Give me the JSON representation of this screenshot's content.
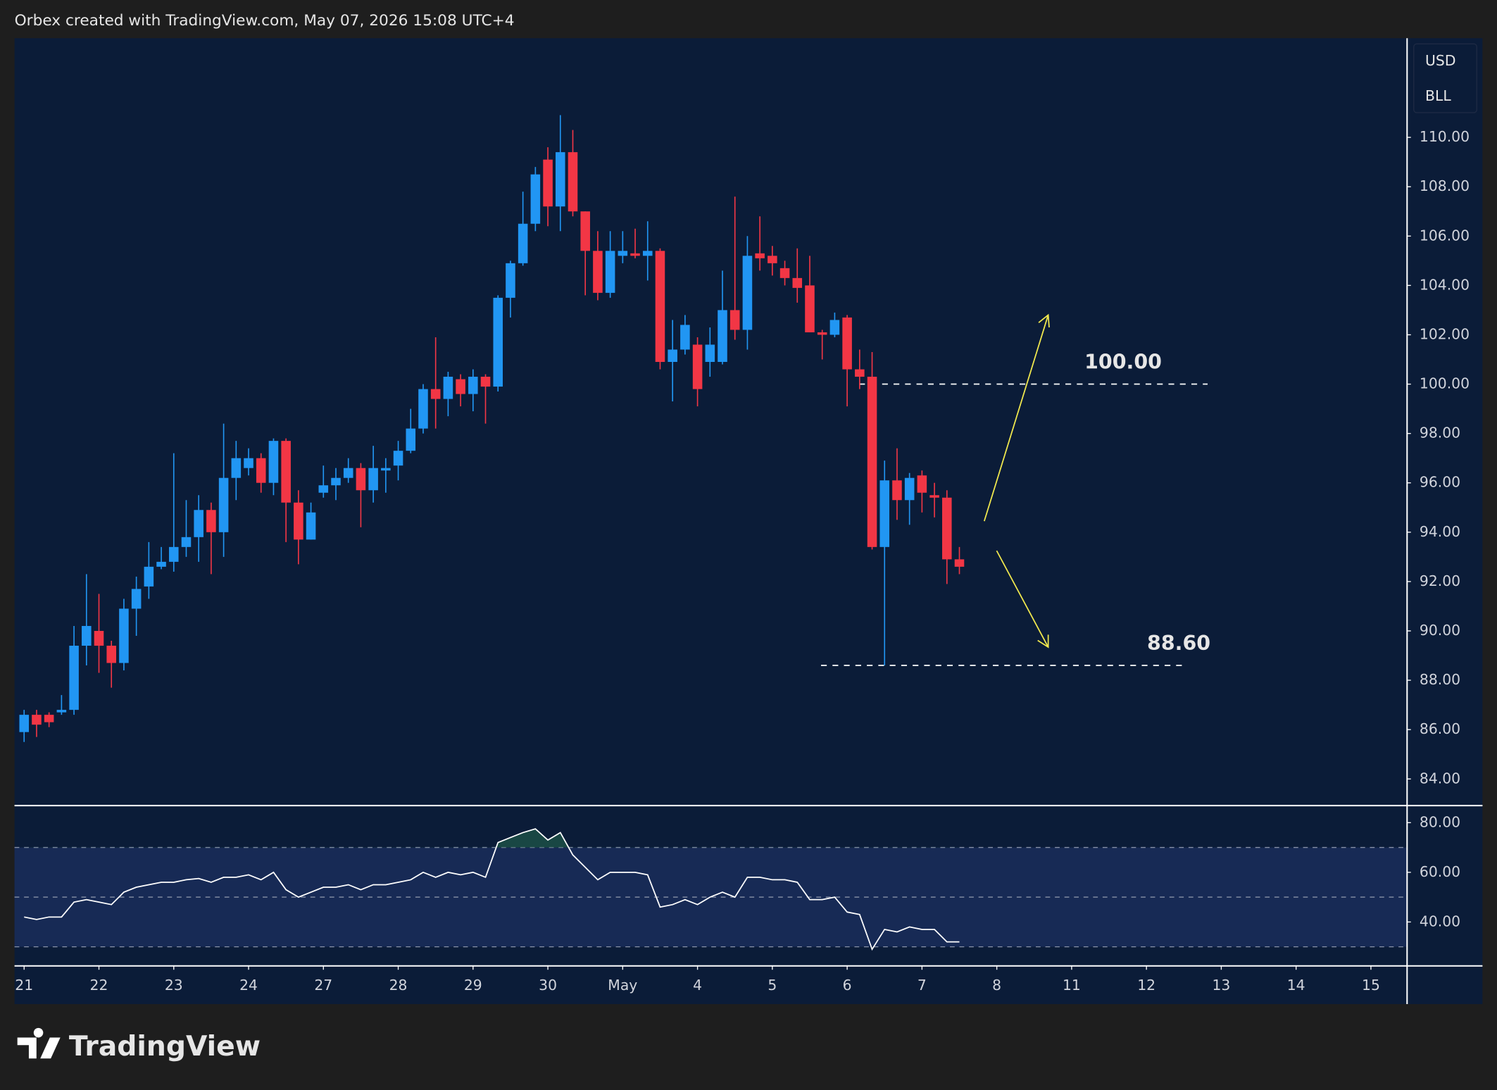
{
  "chart_data": {
    "type": "candlestick",
    "header": "Orbex created with TradingView.com, May 07, 2026 15:08 UTC+4",
    "currency": "USD",
    "unit": "BLL",
    "brand": "TradingView",
    "up_color": "#2196f3",
    "down_color": "#f23645",
    "x": [
      0,
      1,
      2,
      3,
      4,
      5,
      6,
      7,
      8,
      9,
      10,
      11,
      12,
      13,
      14,
      15,
      16,
      17,
      18,
      19,
      20,
      21,
      22,
      23,
      24,
      25,
      26,
      27,
      28,
      29,
      30,
      31,
      32,
      33,
      34,
      35,
      36,
      37,
      38,
      39,
      40,
      41,
      42,
      43,
      44,
      45,
      46,
      47,
      48,
      49,
      50,
      51,
      52,
      53,
      54,
      55,
      56,
      57,
      58,
      59,
      60,
      61,
      62,
      63,
      64,
      65,
      66,
      67,
      68,
      69,
      70,
      71,
      72,
      73,
      74,
      75
    ],
    "open": [
      85.9,
      86.6,
      86.6,
      86.7,
      86.8,
      89.4,
      90.0,
      89.4,
      88.7,
      90.9,
      91.8,
      92.6,
      92.8,
      93.4,
      93.8,
      94.9,
      94.0,
      96.2,
      96.6,
      97.0,
      96.0,
      97.7,
      95.2,
      93.7,
      95.6,
      95.9,
      96.2,
      96.6,
      95.7,
      96.5,
      96.7,
      97.3,
      98.2,
      99.8,
      99.4,
      100.2,
      99.6,
      100.3,
      99.9,
      103.5,
      104.9,
      106.5,
      109.1,
      107.2,
      109.4,
      107.0,
      105.4,
      103.7,
      105.2,
      105.3,
      105.2,
      105.4,
      100.9,
      101.4,
      101.6,
      100.9,
      100.9,
      103.0,
      102.2,
      105.3,
      105.2,
      104.7,
      104.3,
      104.0,
      102.1,
      102.0,
      102.7,
      100.6,
      100.3,
      93.4,
      96.1,
      95.3,
      96.3,
      95.5,
      95.4,
      92.9
    ],
    "high": [
      86.8,
      86.8,
      86.7,
      87.4,
      90.2,
      92.3,
      91.5,
      89.6,
      91.3,
      92.2,
      93.6,
      93.4,
      97.2,
      95.3,
      95.5,
      95.2,
      98.4,
      97.7,
      97.4,
      97.2,
      97.8,
      97.8,
      95.7,
      95.2,
      96.7,
      96.6,
      97.0,
      96.8,
      97.5,
      97.0,
      97.7,
      99.0,
      100.0,
      101.9,
      100.5,
      100.4,
      100.6,
      100.4,
      103.6,
      105.0,
      107.8,
      108.8,
      109.6,
      110.9,
      110.3,
      107.0,
      106.2,
      106.2,
      106.2,
      106.3,
      106.6,
      105.5,
      102.6,
      102.8,
      101.9,
      102.3,
      104.6,
      107.6,
      106.0,
      106.8,
      105.6,
      105.0,
      105.5,
      105.2,
      102.2,
      102.9,
      102.8,
      101.4,
      101.3,
      96.9,
      97.4,
      96.4,
      96.5,
      96.0,
      95.7,
      93.4
    ],
    "low": [
      85.5,
      85.7,
      86.1,
      86.6,
      86.6,
      88.6,
      88.3,
      87.7,
      88.4,
      89.8,
      91.3,
      92.5,
      92.4,
      93.0,
      92.8,
      92.3,
      93.0,
      95.3,
      96.3,
      95.6,
      95.5,
      93.6,
      92.7,
      93.7,
      95.4,
      95.3,
      96.0,
      94.2,
      95.2,
      95.6,
      96.1,
      97.2,
      98.0,
      98.2,
      98.7,
      99.1,
      98.9,
      98.4,
      99.7,
      102.7,
      104.8,
      106.2,
      106.4,
      106.2,
      106.8,
      103.6,
      103.4,
      103.5,
      104.9,
      105.1,
      104.2,
      100.6,
      99.3,
      101.2,
      99.1,
      100.3,
      100.8,
      101.8,
      101.4,
      104.6,
      104.4,
      104.0,
      103.3,
      102.1,
      101.0,
      101.9,
      99.1,
      99.8,
      93.3,
      88.6,
      94.5,
      94.3,
      94.8,
      94.6,
      91.9,
      92.3
    ],
    "close": [
      86.6,
      86.2,
      86.3,
      86.8,
      89.4,
      90.2,
      89.4,
      88.7,
      90.9,
      91.7,
      92.6,
      92.8,
      93.4,
      93.8,
      94.9,
      94.0,
      96.2,
      97.0,
      97.0,
      96.0,
      97.7,
      95.2,
      93.7,
      94.8,
      95.9,
      96.2,
      96.6,
      95.7,
      96.6,
      96.6,
      97.3,
      98.2,
      99.8,
      99.4,
      100.3,
      99.6,
      100.3,
      99.9,
      103.5,
      104.9,
      106.5,
      108.5,
      107.2,
      109.4,
      107.0,
      105.4,
      103.7,
      105.4,
      105.4,
      105.2,
      105.4,
      100.9,
      101.4,
      102.4,
      99.8,
      101.6,
      103.0,
      102.2,
      105.2,
      105.1,
      104.9,
      104.3,
      103.9,
      102.1,
      102.0,
      102.6,
      100.6,
      100.3,
      93.4,
      96.1,
      95.3,
      96.2,
      95.6,
      95.4,
      92.9,
      92.6
    ],
    "xlim": [
      -0.77,
      110.9
    ],
    "xticks": [
      {
        "value": 0,
        "label": "21"
      },
      {
        "value": 6,
        "label": "22"
      },
      {
        "value": 12,
        "label": "23"
      },
      {
        "value": 18,
        "label": "24"
      },
      {
        "value": 24,
        "label": "27"
      },
      {
        "value": 30,
        "label": "28"
      },
      {
        "value": 36,
        "label": "29"
      },
      {
        "value": 42,
        "label": "30"
      },
      {
        "value": 48,
        "label": "May"
      },
      {
        "value": 54,
        "label": "4"
      },
      {
        "value": 60,
        "label": "5"
      },
      {
        "value": 66,
        "label": "6"
      },
      {
        "value": 72,
        "label": "7"
      },
      {
        "value": 78,
        "label": "8"
      },
      {
        "value": 84,
        "label": "11"
      },
      {
        "value": 90,
        "label": "12"
      },
      {
        "value": 96,
        "label": "13"
      },
      {
        "value": 102,
        "label": "14"
      },
      {
        "value": 108,
        "label": "15"
      }
    ],
    "ylim": [
      82.96,
      114.02
    ],
    "yticks": [
      {
        "value": 84,
        "label": "84.00"
      },
      {
        "value": 86,
        "label": "86.00"
      },
      {
        "value": 88,
        "label": "88.00"
      },
      {
        "value": 90,
        "label": "90.00"
      },
      {
        "value": 92,
        "label": "92.00"
      },
      {
        "value": 94,
        "label": "94.00"
      },
      {
        "value": 96,
        "label": "96.00"
      },
      {
        "value": 98,
        "label": "98.00"
      },
      {
        "value": 100,
        "label": "100.00"
      },
      {
        "value": 102,
        "label": "102.00"
      },
      {
        "value": 104,
        "label": "104.00"
      },
      {
        "value": 106,
        "label": "106.00"
      },
      {
        "value": 108,
        "label": "108.00"
      },
      {
        "value": 110,
        "label": "110.00"
      }
    ],
    "levels": [
      {
        "value": 100,
        "label": "100.00"
      },
      {
        "value": 88.6,
        "label": "88.60"
      }
    ],
    "rsi": {
      "color": "#ffffff",
      "values": [
        42,
        41,
        42,
        42,
        48,
        49,
        48,
        47,
        52,
        54,
        55,
        56,
        56,
        57,
        57.5,
        56,
        58,
        58,
        59,
        57,
        60,
        53,
        50,
        52,
        54,
        54,
        55,
        53,
        55,
        55,
        56,
        57,
        60,
        58,
        60,
        59,
        60,
        58,
        72,
        74,
        76,
        77.5,
        73,
        76,
        67,
        62,
        57,
        60,
        60,
        60,
        59,
        46,
        47,
        49,
        47,
        50,
        52,
        50,
        58,
        58,
        57,
        57,
        56,
        49,
        49,
        50,
        44,
        43,
        29,
        37,
        36,
        38,
        37,
        37,
        32,
        32
      ],
      "ylim": [
        22.3,
        86.5
      ],
      "yticks": [
        {
          "value": 40,
          "label": "40.00"
        },
        {
          "value": 60,
          "label": "60.00"
        },
        {
          "value": 80,
          "label": "80.00"
        }
      ],
      "upper": 70,
      "middle": 50,
      "lower": 30
    }
  }
}
